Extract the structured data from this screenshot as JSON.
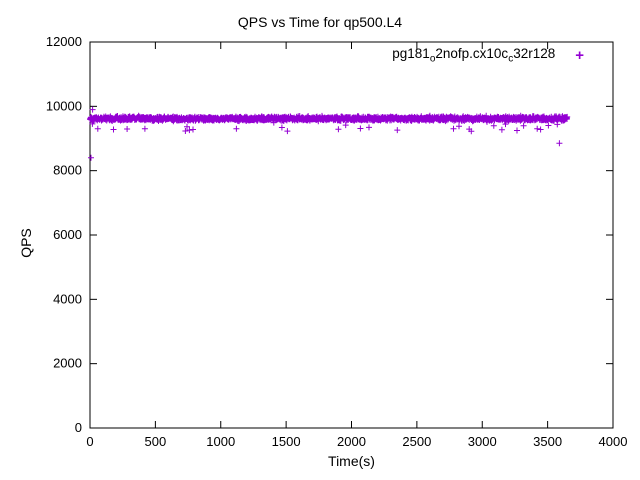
{
  "chart_data": {
    "type": "scatter",
    "title": "QPS vs Time for qp500.L4",
    "xlabel": "Time(s)",
    "ylabel": "QPS",
    "xlim": [
      0,
      4000
    ],
    "ylim": [
      0,
      12000
    ],
    "xticks": [
      0,
      500,
      1000,
      1500,
      2000,
      2500,
      3000,
      3500,
      4000
    ],
    "yticks": [
      0,
      2000,
      4000,
      6000,
      8000,
      10000,
      12000
    ],
    "grid": false,
    "legend": {
      "position": "top-right-inside",
      "entries": [
        {
          "label_parts": [
            {
              "text": "pg181"
            },
            {
              "sub": "o"
            },
            {
              "text": "2nofp.cx10c"
            },
            {
              "sub": "c"
            },
            {
              "text": "32r128"
            }
          ],
          "marker": "plus",
          "color": "#9400D3"
        }
      ]
    },
    "series": [
      {
        "name": "pg181_o2nofp.cx10c_c32r128",
        "color": "#9400D3",
        "marker": "plus",
        "band": {
          "x_start": 0,
          "x_end": 3650,
          "x_step": 2,
          "mean_qps": 9620,
          "spread_qps": 95,
          "seed": 1337,
          "low_dip_prob": 0.012,
          "low_dip_extra": 260
        },
        "outliers": [
          [
            8,
            8400
          ],
          [
            20,
            9900
          ],
          [
            60,
            9300
          ],
          [
            180,
            9280
          ],
          [
            420,
            9300
          ],
          [
            760,
            9260
          ],
          [
            1120,
            9300
          ],
          [
            1510,
            9230
          ],
          [
            1900,
            9290
          ],
          [
            2350,
            9260
          ],
          [
            2780,
            9300
          ],
          [
            3150,
            9270
          ],
          [
            3420,
            9300
          ],
          [
            3590,
            8850
          ]
        ]
      }
    ],
    "axis_color": "#000000",
    "background_color": "#ffffff"
  }
}
